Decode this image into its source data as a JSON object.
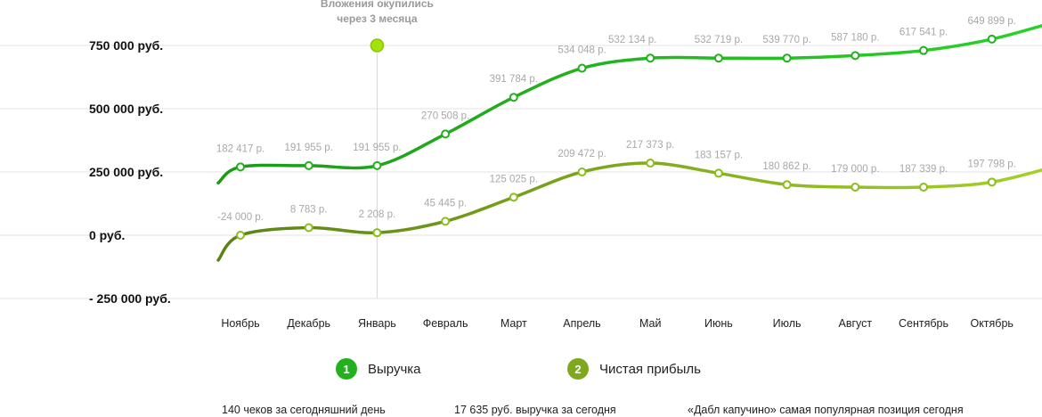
{
  "chart_data": {
    "type": "line",
    "categories": [
      "Ноябрь",
      "Декабрь",
      "Январь",
      "Февраль",
      "Март",
      "Апрель",
      "Май",
      "Июнь",
      "Июль",
      "Август",
      "Сентябрь",
      "Октябрь"
    ],
    "y_ticks": [
      "750 000 руб.",
      "500 000 руб.",
      "250 000 руб.",
      "0 руб.",
      "- 250 000 руб."
    ],
    "ylim": [
      -250000,
      750000
    ],
    "grid": true,
    "series": [
      {
        "name": "Выручка",
        "marker": "1",
        "color": "#22b11c",
        "values": [
          270000,
          275000,
          275000,
          400000,
          545000,
          660000,
          700000,
          700000,
          700000,
          710000,
          730000,
          775000
        ],
        "labels": [
          "182 417 р.",
          "191 955 р.",
          "191 955 р.",
          "270 508 р.",
          "391 784 р.",
          "534 048 р.",
          "532 134 р.",
          "532 719 р.",
          "539 770 р.",
          "587 180 р.",
          "617 541 р.",
          "649 899 р."
        ]
      },
      {
        "name": "Чистая прибыль",
        "marker": "2",
        "color": "#8bbd1c",
        "values": [
          0,
          30000,
          10000,
          55000,
          150000,
          250000,
          285000,
          245000,
          200000,
          190000,
          190000,
          210000
        ],
        "labels": [
          "-24 000 р.",
          "8 783 р.",
          "2 208 р.",
          "45 445 р.",
          "125 025 р.",
          "209 472 р.",
          "217 373 р.",
          "183 157 р.",
          "180 862 р.",
          "179 000 р.",
          "187 339 р.",
          "197 798 р."
        ]
      }
    ],
    "annotation": {
      "text_line1": "Вложения окупились",
      "text_line2": "через 3 месяца",
      "at_category": "Январь",
      "marker_color": "#a5e20c"
    }
  },
  "legend": [
    {
      "number": "1",
      "label": "Выручка",
      "color": "#22b11c"
    },
    {
      "number": "2",
      "label": "Чистая прибыль",
      "color": "#7ea81d"
    }
  ],
  "footer": {
    "checks": "140 чеков за сегодняшний день",
    "revenue": "17 635 руб. выручка за сегодня",
    "popular": "«Дабл капучино» самая популярная позиция сегодня"
  }
}
